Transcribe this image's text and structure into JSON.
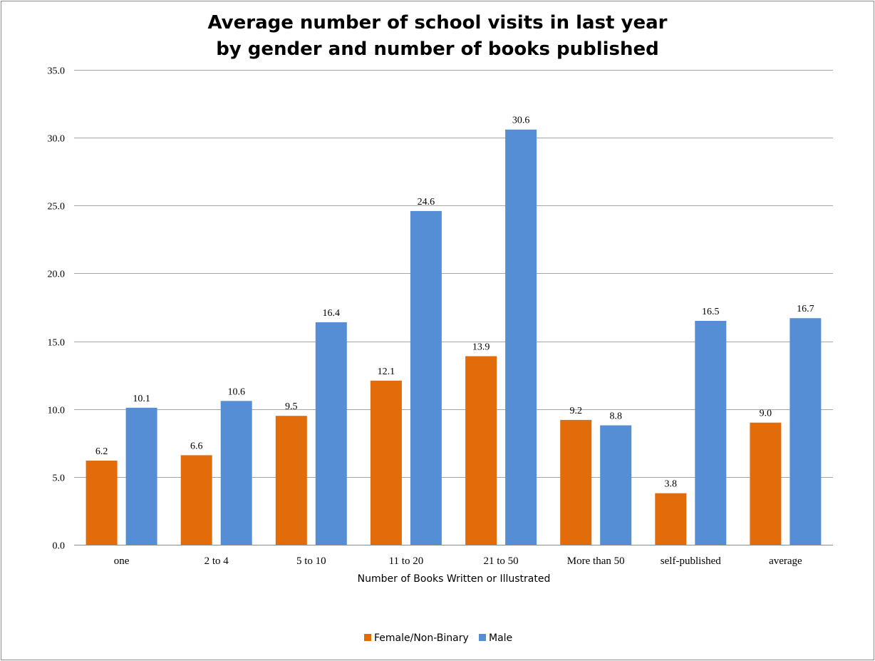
{
  "chart_data": {
    "type": "bar",
    "title_lines": [
      "Average number of school visits in last year",
      "by gender and number of books published"
    ],
    "xlabel": "Number of Books Written or Illustrated",
    "ylabel": "",
    "ylim": [
      0,
      35
    ],
    "ytick_step": 5,
    "ytick_decimals": 1,
    "grid": true,
    "legend_position": "bottom",
    "categories": [
      "one",
      "2 to 4",
      "5 to 10",
      "11 to 20",
      "21 to 50",
      "More than 50",
      "self-published",
      "average"
    ],
    "series": [
      {
        "name": "Female/Non-Binary",
        "color": "#E36C0A",
        "values": [
          6.2,
          6.6,
          9.5,
          12.1,
          13.9,
          9.2,
          3.8,
          9.0
        ],
        "labels": [
          "6.2",
          "6.6",
          "9.5",
          "12.1",
          "13.9",
          "9.2",
          "3.8",
          "9.0"
        ]
      },
      {
        "name": "Male",
        "color": "#558ED5",
        "values": [
          10.1,
          10.6,
          16.4,
          24.6,
          30.6,
          8.8,
          16.5,
          16.7
        ],
        "labels": [
          "10.1",
          "10.6",
          "16.4",
          "24.6",
          "30.6",
          "8.8",
          "16.5",
          "16.7"
        ]
      }
    ]
  }
}
